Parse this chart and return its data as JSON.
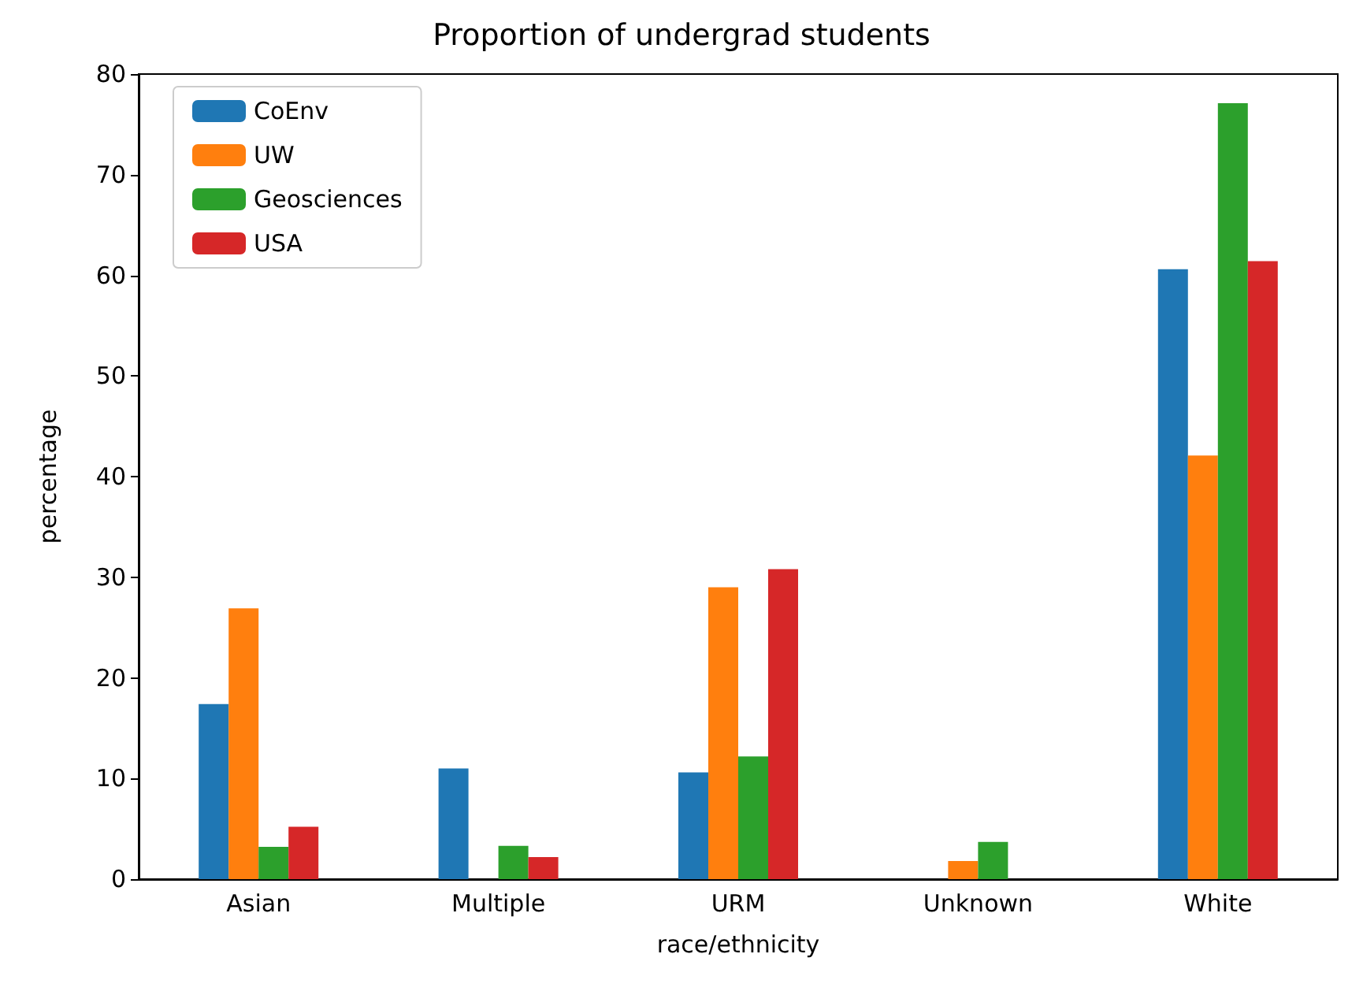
{
  "chart_data": {
    "type": "bar",
    "title": "Proportion of undergrad students",
    "xlabel": "race/ethnicity",
    "ylabel": "percentage",
    "categories": [
      "Asian",
      "Multiple",
      "URM",
      "Unknown",
      "White"
    ],
    "series": [
      {
        "name": "CoEnv",
        "color": "#1f77b4",
        "values": [
          17.4,
          11.0,
          10.6,
          0,
          60.6
        ]
      },
      {
        "name": "UW",
        "color": "#ff7f0e",
        "values": [
          26.9,
          0,
          29.0,
          1.8,
          42.1
        ]
      },
      {
        "name": "Geosciences",
        "color": "#2ca02c",
        "values": [
          3.2,
          3.3,
          12.2,
          3.7,
          77.1
        ]
      },
      {
        "name": "USA",
        "color": "#d62728",
        "values": [
          5.2,
          2.2,
          30.8,
          0,
          61.4
        ]
      }
    ],
    "ylim": [
      0,
      80
    ],
    "yticks": [
      0,
      10,
      20,
      30,
      40,
      50,
      60,
      70,
      80
    ],
    "grid": false,
    "legend": "top left"
  }
}
